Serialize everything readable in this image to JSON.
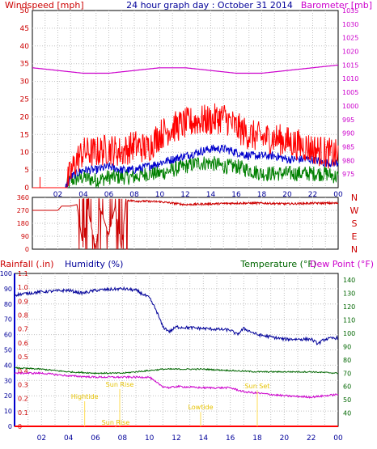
{
  "header": {
    "left_label": "Windspeed [mph]",
    "title": "24 hour graph day : October 31 2014",
    "right_label": "Barometer [mb]"
  },
  "lower_labels": {
    "rainfall": "Rainfall (.in)",
    "humidity": "Humidity (%)",
    "temperature": "Temperature (°F)",
    "dewpoint": "Dew Point (°F)"
  },
  "time_ticks": [
    "02",
    "04",
    "06",
    "08",
    "10",
    "12",
    "14",
    "16",
    "18",
    "20",
    "22",
    "00"
  ],
  "lower_time_ticks": [
    "02",
    "04",
    "06",
    "08",
    "10",
    "12",
    "14",
    "16",
    "18",
    "20",
    "22",
    "00"
  ],
  "events": [
    {
      "label": "Hightide",
      "hour": 5.2,
      "level": 18
    },
    {
      "label": "Sun Rise",
      "hour": 7.8,
      "level": 26
    },
    {
      "label": "Sun Rise",
      "hour": 7.5,
      "level": 1
    },
    {
      "label": "Lowtide",
      "hour": 13.8,
      "level": 11
    },
    {
      "label": "Sun Set",
      "hour": 18.0,
      "level": 25
    }
  ],
  "direction_letters": [
    "N",
    "W",
    "S",
    "E",
    "N"
  ],
  "colors": {
    "windspeed": "#ff0000",
    "gust_avg": "#0000cc",
    "wind_green": "#008000",
    "barometer": "#cc00cc",
    "direction": "#cc0000",
    "humidity": "#000099",
    "temperature": "#006600",
    "dewpoint": "#cc00cc",
    "rainfall": "#ff0000",
    "grid": "#c0c0c0"
  },
  "chart_data": [
    {
      "type": "line",
      "title": "24 hour graph day : October 31 2014",
      "x_unit": "hour",
      "xlim": [
        0,
        24
      ],
      "y_left": {
        "label": "Windspeed [mph]",
        "ylim": [
          0,
          50
        ],
        "ticks": [
          0,
          5,
          10,
          15,
          20,
          25,
          30,
          35,
          40,
          45,
          50
        ]
      },
      "y_right": {
        "label": "Barometer [mb]",
        "ylim": [
          970,
          1035
        ],
        "ticks": [
          975,
          980,
          985,
          990,
          995,
          1000,
          1005,
          1010,
          1015,
          1020,
          1025,
          1030,
          1035
        ]
      },
      "series": [
        {
          "name": "Windspeed [mph]",
          "axis": "left",
          "x": [
            0,
            2,
            2.6,
            3.0,
            3.5,
            4.0,
            5.0,
            6.0,
            7.0,
            8.0,
            9.0,
            10.0,
            11.0,
            12.0,
            13.0,
            14.0,
            15.0,
            16.0,
            17.0,
            18.0,
            19.0,
            20.0,
            21.0,
            22.0,
            23.0,
            24.0
          ],
          "values": [
            0,
            0,
            0,
            4,
            8,
            10,
            10,
            11,
            10,
            12,
            11,
            15,
            17,
            18,
            19,
            19,
            20,
            17,
            15,
            14,
            14,
            13,
            12,
            11,
            10,
            9
          ]
        },
        {
          "axis": "left",
          "x": [
            0,
            2.6,
            3.0,
            4.0,
            5.0,
            6.0,
            7.0,
            8.0,
            9.0,
            10.0,
            11.0,
            12.0,
            13.0,
            14.0,
            15.0,
            16.0,
            17.0,
            18.0,
            19.0,
            20.0,
            21.0,
            22.0,
            23.0,
            24.0
          ],
          "values": [
            0,
            0,
            3,
            5,
            5,
            6,
            5,
            5,
            6,
            7,
            8,
            9,
            10,
            11,
            11,
            10,
            9,
            9,
            9,
            8,
            8,
            8,
            7,
            7
          ]
        },
        {
          "axis": "left",
          "x": [
            0,
            2.6,
            3.0,
            4.0,
            5.0,
            6.0,
            7.0,
            8.0,
            9.0,
            10.0,
            11.0,
            12.0,
            13.0,
            14.0,
            15.0,
            16.0,
            17.0,
            18.0,
            19.0,
            20.0,
            21.0,
            22.0,
            23.0,
            24.0
          ],
          "values": [
            0,
            0,
            2,
            3,
            2,
            3,
            3,
            3,
            4,
            4,
            5,
            6,
            7,
            7,
            6,
            6,
            5,
            4,
            4,
            4,
            4,
            4,
            4,
            3
          ]
        },
        {
          "name": "Barometer [mb]",
          "axis": "right",
          "x": [
            0,
            2,
            4,
            6,
            8,
            10,
            12,
            14,
            16,
            18,
            20,
            22,
            24
          ],
          "values": [
            1014,
            1013,
            1012,
            1012,
            1013,
            1014,
            1014,
            1013,
            1012,
            1012,
            1013,
            1014,
            1015
          ]
        }
      ]
    },
    {
      "type": "line",
      "xlim": [
        0,
        24
      ],
      "ylim": [
        0,
        360
      ],
      "y_ticks": [
        0,
        90,
        180,
        270,
        360
      ],
      "series": [
        {
          "x": [
            0,
            2,
            2.3,
            3,
            3.5,
            4.0,
            4.3,
            5,
            5.3,
            6,
            6.5,
            7,
            7.3,
            7.5,
            8,
            10,
            12,
            14,
            16,
            18,
            20,
            22,
            24
          ],
          "values": [
            270,
            270,
            300,
            300,
            310,
            0,
            300,
            0,
            290,
            100,
            300,
            0,
            310,
            340,
            335,
            330,
            310,
            315,
            320,
            320,
            315,
            320,
            320
          ]
        }
      ]
    },
    {
      "type": "line",
      "xlim": [
        0,
        24
      ],
      "y_left": {
        "label": "Humidity (%)",
        "ylim": [
          0,
          100
        ],
        "ticks": [
          0,
          10,
          20,
          30,
          40,
          50,
          60,
          70,
          80,
          90,
          100
        ]
      },
      "y_right": {
        "label": "Temperature (°F)",
        "ylim": [
          30,
          145
        ],
        "ticks": [
          40,
          50,
          60,
          70,
          80,
          90,
          100,
          110,
          120,
          130,
          140
        ]
      },
      "series": [
        {
          "name": "Humidity (%)",
          "axis": "left",
          "x": [
            0,
            2,
            4,
            5,
            6,
            8,
            9,
            10,
            10.5,
            11,
            11.5,
            12,
            14,
            16,
            16.5,
            17,
            18,
            20,
            22,
            22.5,
            23,
            24
          ],
          "values": [
            86,
            88,
            89,
            87,
            89,
            90,
            89,
            84,
            76,
            65,
            62,
            65,
            64,
            63,
            60,
            64,
            60,
            57,
            57,
            54,
            57,
            58
          ]
        },
        {
          "name": "Temperature (°F)",
          "axis": "right",
          "x": [
            0,
            2,
            4,
            6,
            8,
            10,
            11,
            12,
            14,
            16,
            18,
            20,
            22,
            24
          ],
          "values": [
            74,
            73,
            71,
            70,
            70,
            72,
            73,
            73,
            73,
            72,
            71,
            71,
            71,
            70
          ]
        },
        {
          "name": "Dew Point (°F)",
          "axis": "right",
          "x": [
            0,
            2,
            4,
            6,
            8,
            10,
            10.5,
            11,
            11.5,
            12,
            14,
            16,
            17,
            18,
            20,
            22,
            24
          ],
          "values": [
            70,
            70,
            68,
            67,
            67,
            67,
            63,
            60,
            59,
            60,
            59,
            59,
            56,
            55,
            53,
            52,
            54
          ]
        },
        {
          "name": "Rainfall (.in)",
          "axis": "left",
          "x": [
            0,
            24
          ],
          "values": [
            0,
            0
          ]
        }
      ]
    }
  ]
}
